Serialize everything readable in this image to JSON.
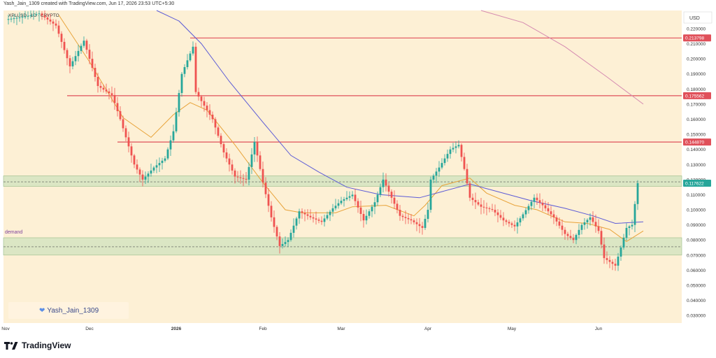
{
  "header": {
    "credit": "Yash_Jain_1309 created with TradingView.com, Jun 17, 2026 23:53 UTC+5:30"
  },
  "watermark": {
    "text": "Yash_Jain_1309",
    "icon": "heart-icon"
  },
  "footer": {
    "brand": "TradingView",
    "icon": "tradingview-logo-icon"
  },
  "colors": {
    "background": "#fdf0d5",
    "up": "#26a69a",
    "down": "#ef5350",
    "level": "#e0505a",
    "ma_fast": "#e8a33a",
    "ma_slow": "#5c5bd6",
    "ma_long": "#d58ab0",
    "zone": "#cfe3bd"
  },
  "chart_data": {
    "type": "candlestick",
    "title": "XPLUSD · 1D · CRYPTO",
    "currency_label": "USD",
    "ylim": [
      0.025,
      0.232
    ],
    "y_ticks": [
      "0.220000",
      "0.210000",
      "0.200000",
      "0.190000",
      "0.180000",
      "0.170000",
      "0.160000",
      "0.150000",
      "0.140000",
      "0.130000",
      "0.120000",
      "0.110000",
      "0.100000",
      "0.090000",
      "0.080000",
      "0.070000",
      "0.060000",
      "0.050000",
      "0.040000",
      "0.030000"
    ],
    "x_ticks": [
      {
        "label": "Nov",
        "day": 0
      },
      {
        "label": "Dec",
        "day": 30
      },
      {
        "label": "2026",
        "day": 61
      },
      {
        "label": "Feb",
        "day": 92
      },
      {
        "label": "Mar",
        "day": 120
      },
      {
        "label": "Apr",
        "day": 151
      },
      {
        "label": "May",
        "day": 181
      },
      {
        "label": "Jun",
        "day": 212
      }
    ],
    "price_labels": [
      "0.213798",
      "0.175562",
      "0.144870",
      "0.117622"
    ],
    "levels": [
      {
        "value": 0.213798,
        "day_start": 66
      },
      {
        "value": 0.175562,
        "day_start": 22
      },
      {
        "value": 0.14487,
        "day_start": 40
      }
    ],
    "current_price": 0.117622,
    "zones": [
      {
        "name": "",
        "top": 0.1225,
        "bottom": 0.1155,
        "mid": 0.1185
      },
      {
        "name": "demand",
        "top": 0.0815,
        "bottom": 0.07,
        "mid": 0.0755
      }
    ],
    "anchors": [
      [
        0,
        0.226
      ],
      [
        7,
        0.228
      ],
      [
        12,
        0.23
      ],
      [
        18,
        0.222
      ],
      [
        23,
        0.195
      ],
      [
        28,
        0.212
      ],
      [
        33,
        0.182
      ],
      [
        38,
        0.176
      ],
      [
        41,
        0.16
      ],
      [
        46,
        0.13
      ],
      [
        49,
        0.12
      ],
      [
        53,
        0.128
      ],
      [
        57,
        0.134
      ],
      [
        60,
        0.152
      ],
      [
        63,
        0.19
      ],
      [
        67,
        0.208
      ],
      [
        68,
        0.178
      ],
      [
        70,
        0.172
      ],
      [
        74,
        0.16
      ],
      [
        78,
        0.138
      ],
      [
        82,
        0.122
      ],
      [
        86,
        0.12
      ],
      [
        89,
        0.145
      ],
      [
        92,
        0.118
      ],
      [
        95,
        0.095
      ],
      [
        98,
        0.076
      ],
      [
        101,
        0.08
      ],
      [
        105,
        0.099
      ],
      [
        109,
        0.095
      ],
      [
        113,
        0.092
      ],
      [
        117,
        0.101
      ],
      [
        120,
        0.106
      ],
      [
        124,
        0.11
      ],
      [
        128,
        0.093
      ],
      [
        132,
        0.105
      ],
      [
        135,
        0.12
      ],
      [
        137,
        0.112
      ],
      [
        141,
        0.096
      ],
      [
        145,
        0.093
      ],
      [
        149,
        0.088
      ],
      [
        151,
        0.1
      ],
      [
        152,
        0.12
      ],
      [
        155,
        0.128
      ],
      [
        159,
        0.14
      ],
      [
        162,
        0.143
      ],
      [
        164,
        0.127
      ],
      [
        166,
        0.108
      ],
      [
        170,
        0.102
      ],
      [
        174,
        0.1
      ],
      [
        178,
        0.093
      ],
      [
        182,
        0.089
      ],
      [
        185,
        0.097
      ],
      [
        189,
        0.108
      ],
      [
        192,
        0.103
      ],
      [
        196,
        0.095
      ],
      [
        200,
        0.084
      ],
      [
        203,
        0.08
      ],
      [
        206,
        0.09
      ],
      [
        209,
        0.095
      ],
      [
        212,
        0.086
      ],
      [
        214,
        0.068
      ],
      [
        218,
        0.063
      ],
      [
        220,
        0.075
      ],
      [
        222,
        0.088
      ],
      [
        224,
        0.09
      ],
      [
        226,
        0.117622
      ]
    ],
    "moving_averages": [
      {
        "points": [
          [
            19,
            0.229
          ],
          [
            30,
            0.198
          ],
          [
            42,
            0.161
          ],
          [
            52,
            0.148
          ],
          [
            60,
            0.163
          ],
          [
            66,
            0.171
          ],
          [
            72,
            0.166
          ],
          [
            82,
            0.143
          ],
          [
            92,
            0.118
          ],
          [
            100,
            0.1
          ],
          [
            106,
            0.098
          ],
          [
            118,
            0.098
          ],
          [
            124,
            0.102
          ],
          [
            136,
            0.103
          ],
          [
            146,
            0.096
          ],
          [
            150,
            0.103
          ],
          [
            156,
            0.116
          ],
          [
            166,
            0.121
          ],
          [
            172,
            0.111
          ],
          [
            182,
            0.103
          ],
          [
            190,
            0.1
          ],
          [
            200,
            0.092
          ],
          [
            208,
            0.091
          ],
          [
            216,
            0.087
          ],
          [
            222,
            0.079
          ],
          [
            228,
            0.086
          ]
        ]
      },
      {
        "points": [
          [
            54,
            0.235
          ],
          [
            62,
            0.225
          ],
          [
            70,
            0.21
          ],
          [
            80,
            0.185
          ],
          [
            92,
            0.158
          ],
          [
            102,
            0.136
          ],
          [
            112,
            0.125
          ],
          [
            122,
            0.115
          ],
          [
            134,
            0.11
          ],
          [
            148,
            0.108
          ],
          [
            156,
            0.112
          ],
          [
            166,
            0.117
          ],
          [
            176,
            0.112
          ],
          [
            188,
            0.106
          ],
          [
            200,
            0.101
          ],
          [
            210,
            0.096
          ],
          [
            218,
            0.091
          ],
          [
            228,
            0.092
          ]
        ]
      },
      {
        "points": [
          [
            170,
            0.236
          ],
          [
            185,
            0.224
          ],
          [
            200,
            0.208
          ],
          [
            215,
            0.188
          ],
          [
            228,
            0.17
          ]
        ]
      }
    ]
  }
}
